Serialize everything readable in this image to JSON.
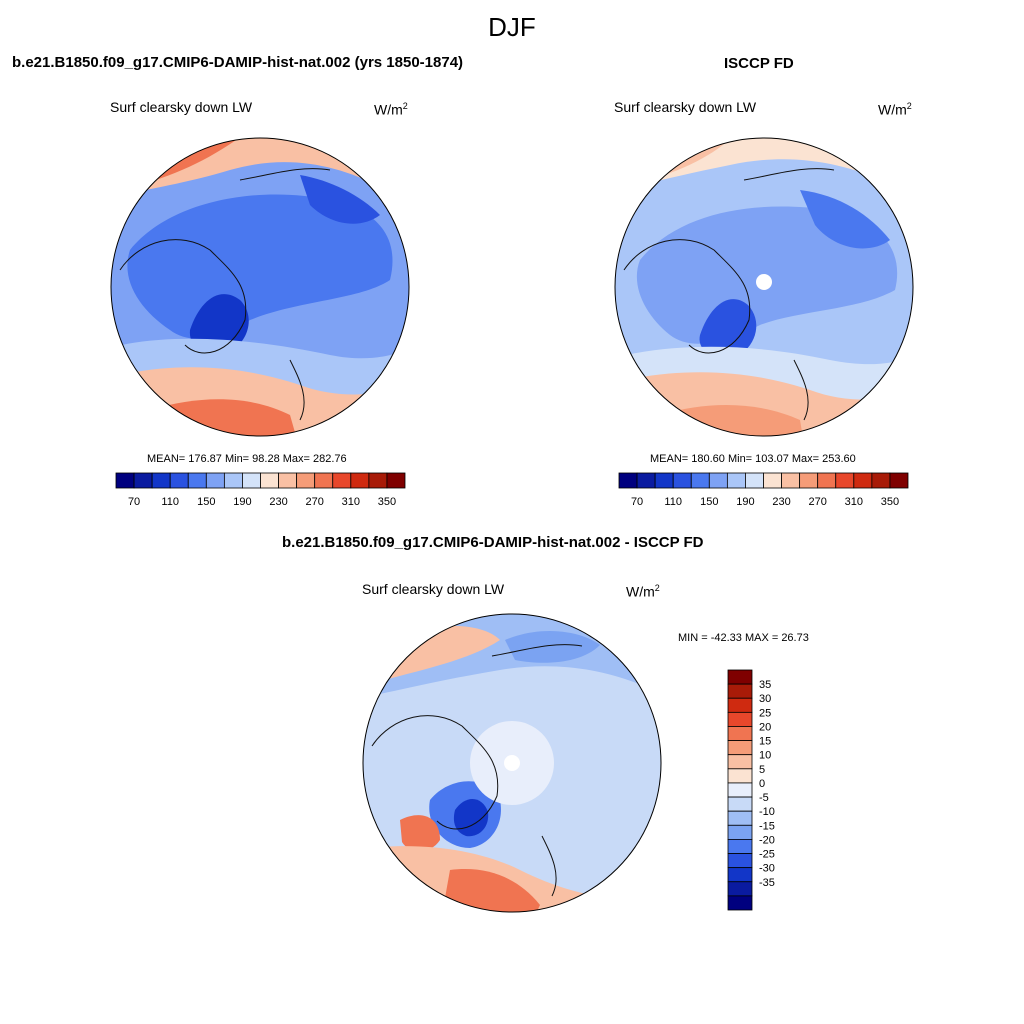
{
  "figure": {
    "season": "DJF",
    "units_base": "W/m",
    "units_exp": "2",
    "units_diff": "W/m",
    "units_diff_exp": "2"
  },
  "panels": {
    "model": {
      "title": "b.e21.B1850.f09_g17.CMIP6-DAMIP-hist-nat.002 (yrs 1850-1874)",
      "variable": "Surf clearsky down LW",
      "stats": "MEAN= 176.87  Min=  98.28  Max= 282.76"
    },
    "obs": {
      "title": "ISCCP FD",
      "variable": "Surf clearsky down LW",
      "stats": "MEAN= 180.60  Min= 103.07  Max= 253.60"
    },
    "diff": {
      "title": "b.e21.B1850.f09_g17.CMIP6-DAMIP-hist-nat.002 - ISCCP FD",
      "variable": "Surf clearsky down LW",
      "stats": "MIN = -42.33 MAX =  26.73"
    }
  },
  "colors": {
    "abs_scale": [
      "#00007f",
      "#0a1ba0",
      "#1236c8",
      "#2a52e0",
      "#4a78ef",
      "#7ea2f4",
      "#aac6f8",
      "#d4e3f9",
      "#fbe3d2",
      "#f9c0a4",
      "#f59c78",
      "#f07451",
      "#e8472b",
      "#cf2a10",
      "#a81b08",
      "#7f0000"
    ],
    "diff_scale": [
      "#7f0000",
      "#a81b08",
      "#cf2a10",
      "#e8472b",
      "#f07451",
      "#f59c78",
      "#f9c0a4",
      "#fbe3d2",
      "#e8eefb",
      "#c8daf7",
      "#9fbef5",
      "#7ba3f2",
      "#4a78ef",
      "#2a52e0",
      "#1236c8",
      "#0a1ba0",
      "#00007f"
    ]
  },
  "chart_data": [
    {
      "type": "heatmap",
      "title": "b.e21.B1850.f09_g17.CMIP6-DAMIP-hist-nat.002 (yrs 1850-1874)",
      "projection": "north polar stereographic",
      "variable": "Surf clearsky down LW",
      "units": "W/m^2",
      "mean": 176.87,
      "min": 98.28,
      "max": 282.76,
      "colorbar_levels": [
        70,
        90,
        110,
        130,
        150,
        170,
        190,
        210,
        230,
        250,
        270,
        290,
        310,
        330,
        350
      ],
      "colorbar_tick_labels": [
        "70",
        "110",
        "150",
        "190",
        "230",
        "270",
        "310",
        "350"
      ]
    },
    {
      "type": "heatmap",
      "title": "ISCCP FD",
      "projection": "north polar stereographic",
      "variable": "Surf clearsky down LW",
      "units": "W/m^2",
      "mean": 180.6,
      "min": 103.07,
      "max": 253.6,
      "colorbar_levels": [
        70,
        90,
        110,
        130,
        150,
        170,
        190,
        210,
        230,
        250,
        270,
        290,
        310,
        330,
        350
      ],
      "colorbar_tick_labels": [
        "70",
        "110",
        "150",
        "190",
        "230",
        "270",
        "310",
        "350"
      ]
    },
    {
      "type": "heatmap",
      "title": "b.e21.B1850.f09_g17.CMIP6-DAMIP-hist-nat.002 - ISCCP FD",
      "projection": "north polar stereographic",
      "variable": "Surf clearsky down LW",
      "units": "W/m^2",
      "min": -42.33,
      "max": 26.73,
      "colorbar_levels": [
        35,
        30,
        25,
        20,
        15,
        10,
        5,
        0,
        -5,
        -10,
        -15,
        -20,
        -25,
        -30,
        -35
      ],
      "colorbar_tick_labels": [
        "35",
        "30",
        "25",
        "20",
        "15",
        "10",
        "5",
        "0",
        "-5",
        "-10",
        "-15",
        "-20",
        "-25",
        "-30",
        "-35"
      ]
    }
  ]
}
